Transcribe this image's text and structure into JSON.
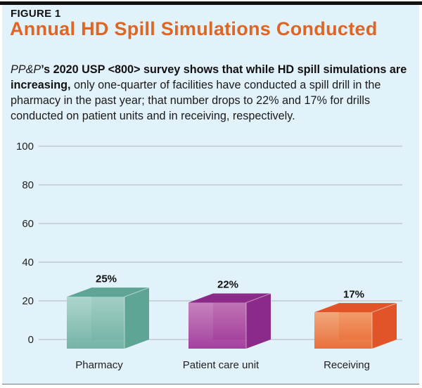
{
  "figure_label": "FIGURE 1",
  "description": {
    "italic_lead": "PP&P",
    "bold_part": "’s 2020 USP <800> survey shows that while HD spill simulations are increasing,",
    "regular_part": " only one-quarter of facilities have conducted a spill drill in the pharmacy in the past year; that number drops to 22% and 17% for drills conducted on patient units and in receiving, respectively."
  },
  "chart_data": {
    "type": "bar",
    "title": "Annual HD Spill Simulations Conducted",
    "categories": [
      "Pharmacy",
      "Patient care unit",
      "Receiving"
    ],
    "values": [
      25,
      22,
      17
    ],
    "data_labels": [
      "25%",
      "22%",
      "17%"
    ],
    "ylim": [
      0,
      100
    ],
    "yticks": [
      0,
      20,
      40,
      60,
      80,
      100
    ],
    "ytick_labels": [
      "0",
      "20",
      "40",
      "60",
      "80",
      "100"
    ],
    "xlabel": "",
    "ylabel": "",
    "grid": true,
    "legend": "none",
    "colors": {
      "Pharmacy": [
        "#a9d3c9",
        "#6fb0a2",
        "#5ea595"
      ],
      "Patient care unit": [
        "#c47ab8",
        "#a0379a",
        "#8b2a88"
      ],
      "Receiving": [
        "#f3a070",
        "#ea6a32",
        "#e05427"
      ]
    }
  }
}
